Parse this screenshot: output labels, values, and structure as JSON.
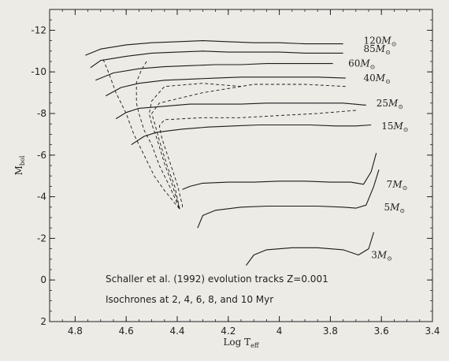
{
  "chart_data": {
    "type": "line",
    "title": "",
    "xlabel": "Log T",
    "xlabel_sub": "eff",
    "ylabel": "M",
    "ylabel_sub": "bol",
    "xlim": [
      4.9,
      3.4
    ],
    "ylim": [
      2,
      -13
    ],
    "grid": false,
    "x_ticks": [
      "4.8",
      "4.6",
      "4.4",
      "4.2",
      "4",
      "3.8",
      "3.6",
      "3.4"
    ],
    "y_ticks": [
      "-12",
      "-10",
      "-8",
      "-6",
      "-4",
      "-2",
      "0",
      "2"
    ],
    "annotations": [
      "Schaller et al. (1992) evolution tracks Z=0.001",
      "Isochrones at 2, 4, 6, 8, and 10 Myr"
    ],
    "series": [
      {
        "name": "120",
        "style": "solid",
        "label_at": [
          3.67,
          -11.5
        ],
        "points": [
          [
            4.76,
            -10.8
          ],
          [
            4.7,
            -11.1
          ],
          [
            4.6,
            -11.3
          ],
          [
            4.5,
            -11.4
          ],
          [
            4.4,
            -11.45
          ],
          [
            4.3,
            -11.5
          ],
          [
            4.2,
            -11.45
          ],
          [
            4.1,
            -11.4
          ],
          [
            4.0,
            -11.4
          ],
          [
            3.9,
            -11.35
          ],
          [
            3.8,
            -11.35
          ],
          [
            3.75,
            -11.35
          ]
        ]
      },
      {
        "name": "85",
        "style": "solid",
        "label_at": [
          3.67,
          -11.1
        ],
        "points": [
          [
            4.74,
            -10.2
          ],
          [
            4.7,
            -10.55
          ],
          [
            4.6,
            -10.75
          ],
          [
            4.5,
            -10.9
          ],
          [
            4.4,
            -10.95
          ],
          [
            4.3,
            -11.0
          ],
          [
            4.2,
            -10.95
          ],
          [
            4.1,
            -10.95
          ],
          [
            4.0,
            -10.95
          ],
          [
            3.9,
            -10.9
          ],
          [
            3.8,
            -10.9
          ],
          [
            3.75,
            -10.9
          ]
        ]
      },
      {
        "name": "60",
        "style": "solid",
        "label_at": [
          3.73,
          -10.4
        ],
        "points": [
          [
            4.72,
            -9.6
          ],
          [
            4.65,
            -9.95
          ],
          [
            4.55,
            -10.15
          ],
          [
            4.45,
            -10.25
          ],
          [
            4.35,
            -10.3
          ],
          [
            4.25,
            -10.35
          ],
          [
            4.15,
            -10.35
          ],
          [
            4.05,
            -10.4
          ],
          [
            3.95,
            -10.4
          ],
          [
            3.85,
            -10.4
          ],
          [
            3.79,
            -10.4
          ]
        ]
      },
      {
        "name": "40",
        "style": "solid",
        "label_at": [
          3.67,
          -9.7
        ],
        "points": [
          [
            4.68,
            -8.85
          ],
          [
            4.62,
            -9.25
          ],
          [
            4.55,
            -9.45
          ],
          [
            4.45,
            -9.6
          ],
          [
            4.35,
            -9.65
          ],
          [
            4.25,
            -9.7
          ],
          [
            4.15,
            -9.75
          ],
          [
            4.05,
            -9.75
          ],
          [
            3.95,
            -9.75
          ],
          [
            3.85,
            -9.75
          ],
          [
            3.74,
            -9.7
          ]
        ]
      },
      {
        "name": "25",
        "style": "solid",
        "label_at": [
          3.62,
          -8.5
        ],
        "points": [
          [
            4.64,
            -7.75
          ],
          [
            4.6,
            -8.05
          ],
          [
            4.55,
            -8.25
          ],
          [
            4.45,
            -8.35
          ],
          [
            4.35,
            -8.45
          ],
          [
            4.25,
            -8.45
          ],
          [
            4.15,
            -8.45
          ],
          [
            4.05,
            -8.5
          ],
          [
            3.95,
            -8.5
          ],
          [
            3.85,
            -8.5
          ],
          [
            3.75,
            -8.5
          ],
          [
            3.66,
            -8.4
          ]
        ]
      },
      {
        "name": "15",
        "style": "solid",
        "label_at": [
          3.6,
          -7.4
        ],
        "points": [
          [
            4.58,
            -6.5
          ],
          [
            4.53,
            -6.9
          ],
          [
            4.48,
            -7.1
          ],
          [
            4.38,
            -7.25
          ],
          [
            4.28,
            -7.35
          ],
          [
            4.18,
            -7.4
          ],
          [
            4.08,
            -7.45
          ],
          [
            3.98,
            -7.45
          ],
          [
            3.88,
            -7.45
          ],
          [
            3.78,
            -7.4
          ],
          [
            3.7,
            -7.4
          ],
          [
            3.64,
            -7.45
          ]
        ]
      },
      {
        "name": "7",
        "style": "solid",
        "label_at": [
          3.58,
          -4.6
        ],
        "points": [
          [
            4.38,
            -4.35
          ],
          [
            4.35,
            -4.5
          ],
          [
            4.3,
            -4.65
          ],
          [
            4.2,
            -4.7
          ],
          [
            4.1,
            -4.7
          ],
          [
            4.0,
            -4.75
          ],
          [
            3.9,
            -4.75
          ],
          [
            3.8,
            -4.7
          ],
          [
            3.72,
            -4.7
          ],
          [
            3.67,
            -4.6
          ],
          [
            3.64,
            -5.2
          ],
          [
            3.62,
            -6.1
          ]
        ]
      },
      {
        "name": "5",
        "style": "solid",
        "label_at": [
          3.59,
          -3.5
        ],
        "points": [
          [
            4.32,
            -2.5
          ],
          [
            4.3,
            -3.1
          ],
          [
            4.25,
            -3.35
          ],
          [
            4.15,
            -3.5
          ],
          [
            4.05,
            -3.55
          ],
          [
            3.95,
            -3.55
          ],
          [
            3.85,
            -3.55
          ],
          [
            3.75,
            -3.5
          ],
          [
            3.7,
            -3.45
          ],
          [
            3.66,
            -3.6
          ],
          [
            3.63,
            -4.5
          ],
          [
            3.61,
            -5.3
          ]
        ]
      },
      {
        "name": "3",
        "style": "solid",
        "label_at": [
          3.64,
          -1.2
        ],
        "points": [
          [
            4.13,
            -0.7
          ],
          [
            4.1,
            -1.2
          ],
          [
            4.05,
            -1.45
          ],
          [
            3.95,
            -1.55
          ],
          [
            3.85,
            -1.55
          ],
          [
            3.75,
            -1.45
          ],
          [
            3.69,
            -1.2
          ],
          [
            3.65,
            -1.5
          ],
          [
            3.63,
            -2.3
          ]
        ]
      },
      {
        "name": "",
        "style": "dashed",
        "points": [
          [
            4.69,
            -10.6
          ],
          [
            4.67,
            -10.0
          ],
          [
            4.64,
            -9.0
          ],
          [
            4.6,
            -8.0
          ],
          [
            4.57,
            -7.0
          ],
          [
            4.53,
            -6.0
          ],
          [
            4.49,
            -5.0
          ],
          [
            4.45,
            -4.3
          ],
          [
            4.39,
            -3.4
          ]
        ]
      },
      {
        "name": "",
        "style": "dashed",
        "points": [
          [
            4.52,
            -10.5
          ],
          [
            4.54,
            -10.1
          ],
          [
            4.56,
            -9.5
          ],
          [
            4.56,
            -8.5
          ],
          [
            4.55,
            -8.0
          ],
          [
            4.53,
            -7.2
          ],
          [
            4.5,
            -6.5
          ],
          [
            4.47,
            -5.5
          ],
          [
            4.43,
            -4.5
          ],
          [
            4.39,
            -3.4
          ]
        ]
      },
      {
        "name": "",
        "style": "dashed",
        "points": [
          [
            4.15,
            -9.3
          ],
          [
            4.3,
            -9.45
          ],
          [
            4.45,
            -9.3
          ],
          [
            4.5,
            -8.6
          ],
          [
            4.51,
            -8.0
          ],
          [
            4.5,
            -7.5
          ],
          [
            4.48,
            -6.8
          ],
          [
            4.45,
            -5.6
          ],
          [
            4.42,
            -4.6
          ],
          [
            4.39,
            -3.4
          ]
        ]
      },
      {
        "name": "",
        "style": "dashed",
        "points": [
          [
            3.74,
            -9.3
          ],
          [
            3.9,
            -9.4
          ],
          [
            4.1,
            -9.4
          ],
          [
            4.3,
            -9.0
          ],
          [
            4.47,
            -8.5
          ],
          [
            4.5,
            -8.0
          ],
          [
            4.49,
            -7.6
          ],
          [
            4.47,
            -6.7
          ],
          [
            4.44,
            -5.5
          ],
          [
            4.41,
            -4.5
          ],
          [
            4.39,
            -3.4
          ]
        ]
      },
      {
        "name": "",
        "style": "dashed",
        "points": [
          [
            3.7,
            -8.15
          ],
          [
            3.85,
            -8.0
          ],
          [
            4.0,
            -7.9
          ],
          [
            4.15,
            -7.8
          ],
          [
            4.3,
            -7.8
          ],
          [
            4.45,
            -7.7
          ],
          [
            4.47,
            -7.4
          ],
          [
            4.46,
            -6.8
          ],
          [
            4.43,
            -5.7
          ],
          [
            4.4,
            -4.6
          ],
          [
            4.38,
            -3.6
          ],
          [
            4.38,
            -3.4
          ]
        ]
      }
    ]
  }
}
